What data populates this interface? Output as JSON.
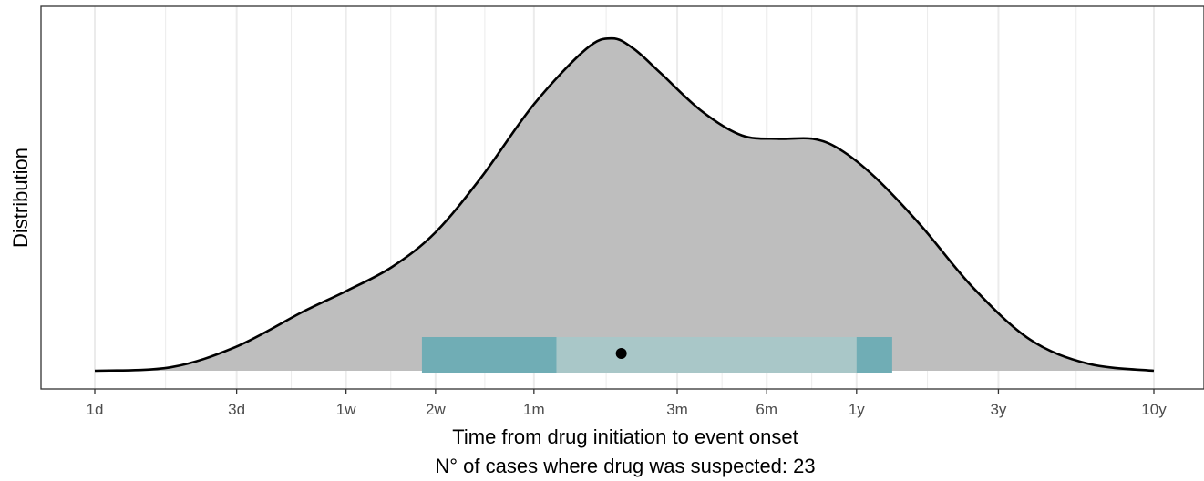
{
  "chart_data": {
    "type": "area",
    "x_scale": "log",
    "x_unit": "days",
    "ylabel": "Distribution",
    "xlabel": "Time from drug initiation to event onset",
    "subtitle": "N° of cases where drug was suspected: 23",
    "x_ticks": [
      {
        "label": "1d",
        "value": 1
      },
      {
        "label": "3d",
        "value": 3
      },
      {
        "label": "1w",
        "value": 7
      },
      {
        "label": "2w",
        "value": 14
      },
      {
        "label": "1m",
        "value": 30
      },
      {
        "label": "3m",
        "value": 91
      },
      {
        "label": "6m",
        "value": 182
      },
      {
        "label": "1y",
        "value": 365
      },
      {
        "label": "3y",
        "value": 1095
      },
      {
        "label": "10y",
        "value": 3650
      }
    ],
    "minor_grid_days": [
      1.73,
      4.58,
      9.9,
      20.5,
      52.5,
      128.7,
      258,
      632,
      2000
    ],
    "xlim": [
      1,
      3650
    ],
    "ylim": [
      0,
      1
    ],
    "density": {
      "x": [
        1,
        1.8,
        3,
        5,
        7,
        10,
        14,
        20,
        30,
        45,
        55,
        65,
        80,
        110,
        150,
        200,
        260,
        320,
        420,
        600,
        900,
        1400,
        2200,
        3650
      ],
      "y": [
        0.0,
        0.01,
        0.07,
        0.17,
        0.23,
        0.3,
        0.4,
        0.56,
        0.77,
        0.93,
        0.96,
        0.93,
        0.86,
        0.75,
        0.68,
        0.67,
        0.67,
        0.64,
        0.56,
        0.42,
        0.24,
        0.09,
        0.02,
        0.0
      ]
    },
    "range_bar": {
      "outer": [
        12.6,
        481
      ],
      "inner": [
        35.7,
        365
      ],
      "median": 59
    },
    "colors": {
      "density_fill": "#bebebe",
      "density_line": "#000000",
      "outer_range": "#70adb5",
      "inner_range": "#a9c7c8",
      "median_point": "#000000",
      "grid": "#ebebeb",
      "panel_border": "#333333"
    },
    "grid": true,
    "legend": "none"
  }
}
